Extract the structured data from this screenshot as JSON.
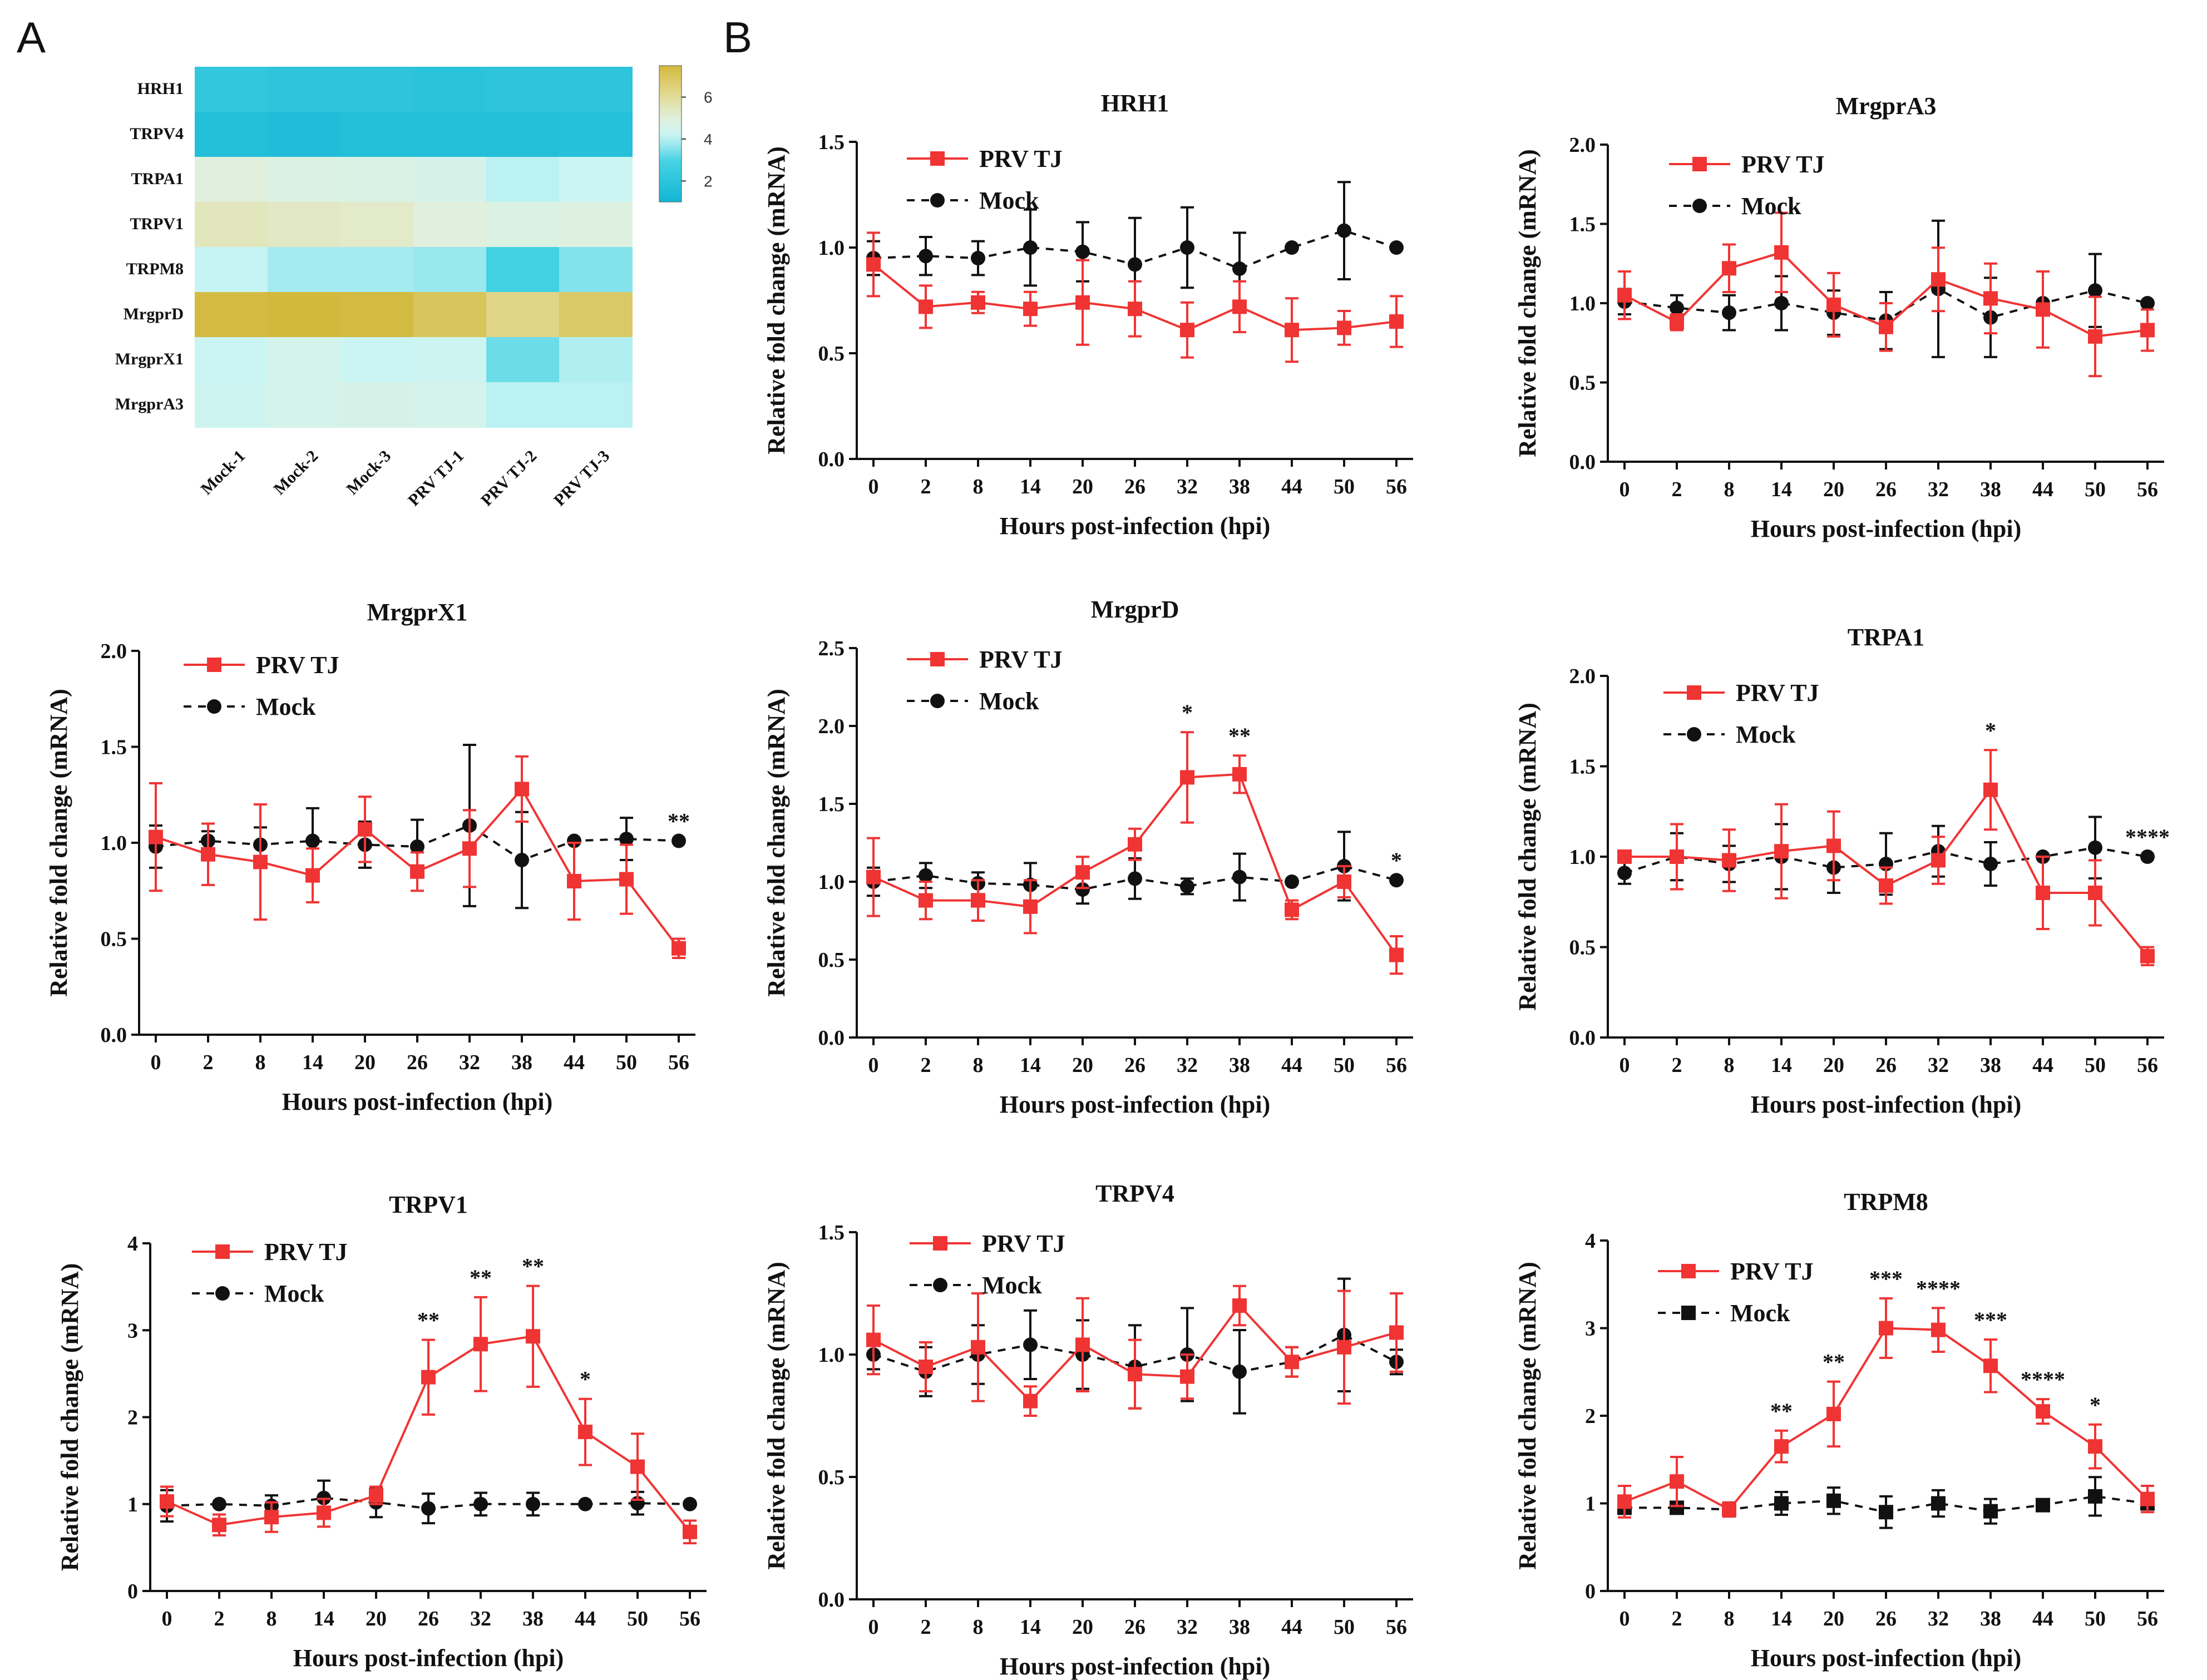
{
  "panel_labels": {
    "a": "A",
    "b": "B"
  },
  "colors": {
    "prv": "#f03434",
    "mock": "#111111"
  },
  "chart_data": [
    {
      "type": "heatmap",
      "title": "",
      "rows": [
        "HRH1",
        "TRPV4",
        "TRPA1",
        "TRPV1",
        "TRPM8",
        "MrgprD",
        "MrgprX1",
        "MrgprA3"
      ],
      "columns": [
        "Mock-1",
        "Mock-2",
        "Mock-3",
        "PRV TJ-1",
        "PRV TJ-2",
        "PRV TJ-3"
      ],
      "values": [
        [
          2.2,
          2.0,
          2.0,
          1.9,
          2.0,
          2.0
        ],
        [
          1.6,
          1.5,
          1.6,
          1.6,
          1.6,
          1.7
        ],
        [
          5.0,
          4.8,
          4.7,
          4.6,
          4.0,
          4.2
        ],
        [
          5.5,
          5.4,
          5.3,
          5.0,
          4.8,
          4.9
        ],
        [
          4.1,
          3.8,
          3.8,
          3.7,
          2.8,
          3.5
        ],
        [
          7.4,
          7.5,
          7.4,
          7.0,
          6.3,
          6.8
        ],
        [
          4.2,
          4.5,
          4.2,
          4.3,
          3.3,
          3.9
        ],
        [
          4.3,
          4.5,
          4.6,
          4.5,
          4.0,
          4.0
        ]
      ],
      "colorbar": {
        "min": 1,
        "max": 7.5,
        "ticks": [
          2,
          4,
          6
        ]
      }
    },
    {
      "type": "line",
      "title": "HRH1",
      "xlabel": "Hours post-infection (hpi)",
      "ylabel": "Relative fold change (mRNA)",
      "categories": [
        "0",
        "2",
        "8",
        "14",
        "20",
        "26",
        "32",
        "38",
        "44",
        "50",
        "56"
      ],
      "ylim": [
        0,
        1.5
      ],
      "yticks": [
        "0.0",
        "0.5",
        "1.0",
        "1.5"
      ],
      "series": [
        {
          "name": "PRV TJ",
          "values": [
            0.92,
            0.72,
            0.74,
            0.71,
            0.74,
            0.71,
            0.61,
            0.72,
            0.61,
            0.62,
            0.65
          ],
          "errors": [
            0.15,
            0.1,
            0.05,
            0.08,
            0.2,
            0.13,
            0.13,
            0.12,
            0.15,
            0.08,
            0.12
          ]
        },
        {
          "name": "Mock",
          "values": [
            0.95,
            0.96,
            0.95,
            1.0,
            0.98,
            0.92,
            1.0,
            0.9,
            1.0,
            1.08,
            1.0
          ],
          "errors": [
            0.08,
            0.09,
            0.08,
            0.18,
            0.14,
            0.22,
            0.19,
            0.17,
            0.0,
            0.23,
            0.0
          ]
        }
      ],
      "significance": [
        "",
        "",
        "",
        "",
        "",
        "",
        "",
        "",
        "",
        "",
        ""
      ]
    },
    {
      "type": "line",
      "title": "MrgprA3",
      "xlabel": "Hours post-infection (hpi)",
      "ylabel": "Relative fold change (mRNA)",
      "categories": [
        "0",
        "2",
        "8",
        "14",
        "20",
        "26",
        "32",
        "38",
        "44",
        "50",
        "56"
      ],
      "ylim": [
        0,
        2.0
      ],
      "yticks": [
        "0.0",
        "0.5",
        "1.0",
        "1.5",
        "2.0"
      ],
      "series": [
        {
          "name": "PRV TJ",
          "values": [
            1.05,
            0.88,
            1.22,
            1.32,
            0.99,
            0.85,
            1.15,
            1.03,
            0.96,
            0.79,
            0.83
          ],
          "errors": [
            0.15,
            0.05,
            0.15,
            0.25,
            0.2,
            0.15,
            0.2,
            0.22,
            0.24,
            0.25,
            0.13
          ]
        },
        {
          "name": "Mock",
          "values": [
            1.01,
            0.97,
            0.94,
            1.0,
            0.94,
            0.89,
            1.09,
            0.91,
            1.0,
            1.08,
            1.0
          ],
          "errors": [
            0.08,
            0.08,
            0.11,
            0.17,
            0.14,
            0.18,
            0.43,
            0.25,
            0.0,
            0.23,
            0.0
          ]
        }
      ],
      "significance": [
        "",
        "",
        "",
        "",
        "",
        "",
        "",
        "",
        "",
        "",
        ""
      ]
    },
    {
      "type": "line",
      "title": "MrgprX1",
      "xlabel": "Hours post-infection (hpi)",
      "ylabel": "Relative fold change (mRNA)",
      "categories": [
        "0",
        "2",
        "8",
        "14",
        "20",
        "26",
        "32",
        "38",
        "44",
        "50",
        "56"
      ],
      "ylim": [
        0,
        2.0
      ],
      "yticks": [
        "0.0",
        "0.5",
        "1.0",
        "1.5",
        "2.0"
      ],
      "series": [
        {
          "name": "PRV TJ",
          "values": [
            1.03,
            0.94,
            0.9,
            0.83,
            1.07,
            0.85,
            0.97,
            1.28,
            0.8,
            0.81,
            0.45
          ],
          "errors": [
            0.28,
            0.16,
            0.3,
            0.14,
            0.17,
            0.1,
            0.2,
            0.17,
            0.2,
            0.18,
            0.05
          ]
        },
        {
          "name": "Mock",
          "values": [
            0.98,
            1.01,
            0.99,
            1.01,
            0.99,
            0.98,
            1.09,
            0.91,
            1.01,
            1.02,
            1.01
          ],
          "errors": [
            0.11,
            0.05,
            0.09,
            0.17,
            0.12,
            0.14,
            0.42,
            0.25,
            0.0,
            0.11,
            0.0
          ]
        }
      ],
      "significance": [
        "",
        "",
        "",
        "",
        "",
        "",
        "",
        "",
        "",
        "",
        "**"
      ]
    },
    {
      "type": "line",
      "title": "MrgprD",
      "xlabel": "Hours post-infection (hpi)",
      "ylabel": "Relative fold change (mRNA)",
      "categories": [
        "0",
        "2",
        "8",
        "14",
        "20",
        "26",
        "32",
        "38",
        "44",
        "50",
        "56"
      ],
      "ylim": [
        0,
        2.5
      ],
      "yticks": [
        "0.0",
        "0.5",
        "1.0",
        "1.5",
        "2.0",
        "2.5"
      ],
      "series": [
        {
          "name": "PRV TJ",
          "values": [
            1.03,
            0.88,
            0.88,
            0.84,
            1.06,
            1.24,
            1.67,
            1.69,
            0.82,
            1.0,
            0.53
          ],
          "errors": [
            0.25,
            0.12,
            0.13,
            0.17,
            0.1,
            0.1,
            0.29,
            0.12,
            0.06,
            0.1,
            0.12
          ]
        },
        {
          "name": "Mock",
          "values": [
            1.0,
            1.04,
            0.99,
            0.98,
            0.95,
            1.02,
            0.97,
            1.03,
            1.0,
            1.1,
            1.01
          ],
          "errors": [
            0.09,
            0.08,
            0.07,
            0.14,
            0.09,
            0.13,
            0.05,
            0.15,
            0.0,
            0.22,
            0.0
          ]
        }
      ],
      "significance": [
        "",
        "",
        "",
        "",
        "",
        "",
        "*",
        "**",
        "",
        "",
        "*"
      ]
    },
    {
      "type": "line",
      "title": "TRPA1",
      "xlabel": "Hours post-infection (hpi)",
      "ylabel": "Relative fold change (mRNA)",
      "categories": [
        "0",
        "2",
        "8",
        "14",
        "20",
        "26",
        "32",
        "38",
        "44",
        "50",
        "56"
      ],
      "ylim": [
        0,
        2.0
      ],
      "yticks": [
        "0.0",
        "0.5",
        "1.0",
        "1.5",
        "2.0"
      ],
      "series": [
        {
          "name": "PRV TJ",
          "values": [
            1.0,
            1.0,
            0.98,
            1.03,
            1.06,
            0.84,
            0.98,
            1.37,
            0.8,
            0.8,
            0.45
          ],
          "errors": [
            0.03,
            0.18,
            0.17,
            0.26,
            0.19,
            0.1,
            0.13,
            0.22,
            0.2,
            0.18,
            0.05
          ]
        },
        {
          "name": "Mock",
          "values": [
            0.91,
            1.0,
            0.96,
            1.0,
            0.94,
            0.96,
            1.03,
            0.96,
            1.0,
            1.05,
            1.0
          ],
          "errors": [
            0.06,
            0.13,
            0.1,
            0.18,
            0.14,
            0.17,
            0.14,
            0.12,
            0.0,
            0.17,
            0.0
          ]
        }
      ],
      "significance": [
        "",
        "",
        "",
        "",
        "",
        "",
        "",
        "*",
        "",
        "",
        "****"
      ]
    },
    {
      "type": "line",
      "title": "TRPV1",
      "xlabel": "Hours post-infection (hpi)",
      "ylabel": "Relative fold change (mRNA)",
      "categories": [
        "0",
        "2",
        "8",
        "14",
        "20",
        "26",
        "32",
        "38",
        "44",
        "50",
        "56"
      ],
      "ylim": [
        0,
        4
      ],
      "yticks": [
        "0",
        "1",
        "2",
        "3",
        "4"
      ],
      "series": [
        {
          "name": "PRV TJ",
          "values": [
            1.03,
            0.76,
            0.85,
            0.9,
            1.1,
            2.46,
            2.84,
            2.93,
            1.83,
            1.43,
            0.68
          ],
          "errors": [
            0.17,
            0.12,
            0.17,
            0.16,
            0.1,
            0.43,
            0.54,
            0.58,
            0.38,
            0.38,
            0.13
          ]
        },
        {
          "name": "Mock",
          "values": [
            0.98,
            1.0,
            0.98,
            1.07,
            1.02,
            0.95,
            1.0,
            1.0,
            1.0,
            1.01,
            1.0
          ],
          "errors": [
            0.18,
            0.0,
            0.12,
            0.2,
            0.17,
            0.17,
            0.13,
            0.13,
            0.0,
            0.13,
            0.0
          ]
        }
      ],
      "significance": [
        "",
        "",
        "",
        "",
        "",
        "**",
        "**",
        "**",
        "*",
        "",
        ""
      ]
    },
    {
      "type": "line",
      "title": "TRPV4",
      "xlabel": "Hours post-infection (hpi)",
      "ylabel": "Relative fold change (mRNA)",
      "categories": [
        "0",
        "2",
        "8",
        "14",
        "20",
        "26",
        "32",
        "38",
        "44",
        "50",
        "56"
      ],
      "ylim": [
        0,
        1.5
      ],
      "yticks": [
        "0.0",
        "0.5",
        "1.0",
        "1.5"
      ],
      "series": [
        {
          "name": "PRV TJ",
          "values": [
            1.06,
            0.95,
            1.03,
            0.81,
            1.04,
            0.92,
            0.91,
            1.2,
            0.97,
            1.03,
            1.09
          ],
          "errors": [
            0.14,
            0.1,
            0.22,
            0.06,
            0.19,
            0.14,
            0.09,
            0.08,
            0.06,
            0.23,
            0.16
          ]
        },
        {
          "name": "Mock",
          "values": [
            1.0,
            0.93,
            1.0,
            1.04,
            1.0,
            0.95,
            1.0,
            0.93,
            0.97,
            1.08,
            0.97
          ],
          "errors": [
            0.06,
            0.1,
            0.12,
            0.14,
            0.14,
            0.17,
            0.19,
            0.17,
            0.06,
            0.23,
            0.05
          ]
        }
      ],
      "significance": [
        "",
        "",
        "",
        "",
        "",
        "",
        "",
        "",
        "",
        "",
        ""
      ]
    },
    {
      "type": "line",
      "title": "TRPM8",
      "xlabel": "Hours post-infection (hpi)",
      "ylabel": "Relative fold change (mRNA)",
      "categories": [
        "0",
        "2",
        "8",
        "14",
        "20",
        "26",
        "32",
        "38",
        "44",
        "50",
        "56"
      ],
      "ylim": [
        0,
        4
      ],
      "yticks": [
        "0",
        "1",
        "2",
        "3",
        "4"
      ],
      "series": [
        {
          "name": "PRV TJ",
          "values": [
            1.02,
            1.25,
            0.93,
            1.65,
            2.02,
            3.0,
            2.98,
            2.57,
            2.05,
            1.65,
            1.05
          ],
          "errors": [
            0.18,
            0.28,
            0.08,
            0.18,
            0.37,
            0.34,
            0.25,
            0.3,
            0.14,
            0.25,
            0.15
          ]
        },
        {
          "name": "Mock",
          "values": [
            0.95,
            0.95,
            0.93,
            1.0,
            1.03,
            0.9,
            1.0,
            0.91,
            0.98,
            1.08,
            1.0
          ],
          "errors": [
            0.07,
            0.05,
            0.08,
            0.13,
            0.15,
            0.18,
            0.15,
            0.14,
            0.05,
            0.22,
            0.05
          ]
        }
      ],
      "significance": [
        "",
        "",
        "",
        "**",
        "**",
        "***",
        "****",
        "***",
        "****",
        "*",
        ""
      ]
    }
  ]
}
